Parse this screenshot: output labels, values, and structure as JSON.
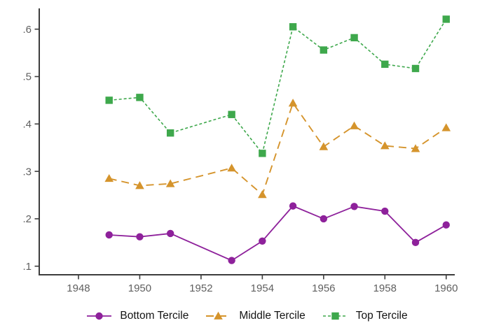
{
  "chart_data": {
    "type": "line",
    "title": "",
    "xlabel": "",
    "ylabel": "",
    "grid": false,
    "legend_position": "bottom",
    "x": [
      1949,
      1950,
      1951,
      1953,
      1954,
      1955,
      1956,
      1957,
      1958,
      1959,
      1960
    ],
    "series": [
      {
        "name": "Bottom Tercile",
        "color": "#8e219b",
        "marker": "circle",
        "line_style": "solid",
        "dash": "",
        "stroke_width": 1.8,
        "values": [
          0.166,
          0.162,
          0.169,
          0.112,
          0.153,
          0.227,
          0.2,
          0.226,
          0.216,
          0.15,
          0.187
        ]
      },
      {
        "name": "Middle Tercile",
        "color": "#d5942c",
        "marker": "triangle",
        "line_style": "long-dash",
        "dash": "11 7",
        "stroke_width": 1.9,
        "values": [
          0.285,
          0.27,
          0.274,
          0.307,
          0.251,
          0.444,
          0.352,
          0.396,
          0.354,
          0.348,
          0.392
        ]
      },
      {
        "name": "Top Tercile",
        "color": "#3ea84c",
        "marker": "square",
        "line_style": "short-dash",
        "dash": "4 3",
        "stroke_width": 1.6,
        "values": [
          0.45,
          0.456,
          0.381,
          0.42,
          0.338,
          0.605,
          0.556,
          0.582,
          0.526,
          0.517,
          0.621
        ]
      }
    ],
    "xticks": [
      {
        "value": 1948,
        "label": "1948"
      },
      {
        "value": 1950,
        "label": "1950"
      },
      {
        "value": 1952,
        "label": "1952"
      },
      {
        "value": 1954,
        "label": "1954"
      },
      {
        "value": 1956,
        "label": "1956"
      },
      {
        "value": 1958,
        "label": "1958"
      },
      {
        "value": 1960,
        "label": "1960"
      }
    ],
    "yticks": [
      {
        "value": 0.1,
        "label": ".1"
      },
      {
        "value": 0.2,
        "label": ".2"
      },
      {
        "value": 0.3,
        "label": ".3"
      },
      {
        "value": 0.4,
        "label": ".4"
      },
      {
        "value": 0.5,
        "label": ".5"
      },
      {
        "value": 0.6,
        "label": ".6"
      }
    ],
    "xlim": [
      1946.72,
      1960.28
    ],
    "ylim": [
      0.0819,
      0.6438
    ],
    "axis_color": "#3c3c3c",
    "tick_label_color": "#5f5f5f"
  }
}
